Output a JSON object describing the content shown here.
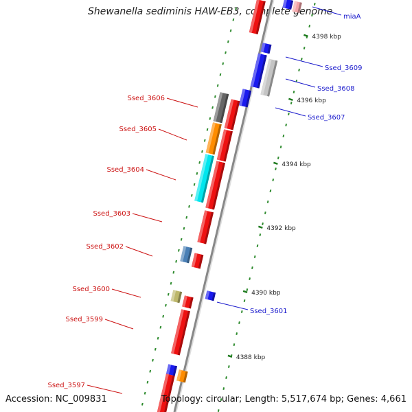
{
  "title": "Shewanella sediminis HAW-EB3, complete genome",
  "footer": {
    "accession": "Accession: NC_009831",
    "topology": "Topology: circular; Length: 5,517,674 bp; Genes: 4,661"
  },
  "colors": {
    "backbone": "#888888",
    "dots": "#2e8b2e",
    "forward_label": "#cc1111",
    "reverse_label": "#1a1acc",
    "red": "#ee1111",
    "blue": "#1a1aee",
    "gray": "#c4c4c4",
    "darkgray": "#666666",
    "orange": "#ff8c00",
    "cyan": "#00e6ee",
    "steelblue": "#4a7fb5",
    "khaki": "#bdb76b",
    "pink": "#f3a2a6"
  },
  "ticks": [
    {
      "label": "4398 kbp"
    },
    {
      "label": "4396 kbp"
    },
    {
      "label": "4394 kbp"
    },
    {
      "label": "4392 kbp"
    },
    {
      "label": "4390 kbp"
    },
    {
      "label": "4388 kbp"
    }
  ],
  "labels": {
    "forward": [
      "Ssed_3606",
      "Ssed_3605",
      "Ssed_3604",
      "Ssed_3603",
      "Ssed_3602",
      "Ssed_3600",
      "Ssed_3599",
      "Ssed_3597"
    ],
    "reverse": [
      "miaA",
      "Ssed_3609",
      "Ssed_3608",
      "Ssed_3607",
      "Ssed_3601"
    ]
  }
}
